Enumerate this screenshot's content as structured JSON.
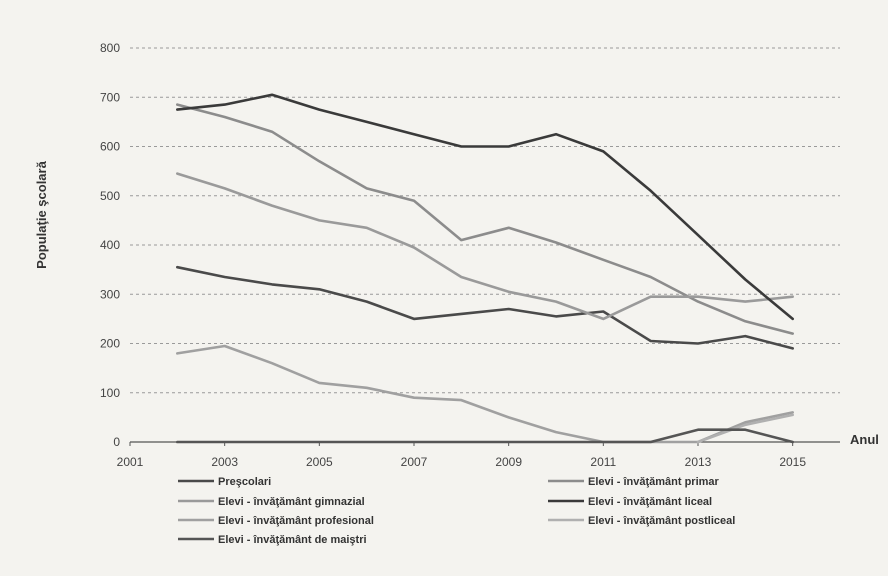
{
  "chart_data": {
    "type": "line",
    "ylabel": "Populaţie şcolară",
    "xlabel": "Anul",
    "xlim": [
      2001,
      2016
    ],
    "ylim": [
      0,
      800
    ],
    "x_ticks": [
      2001,
      2003,
      2005,
      2007,
      2009,
      2011,
      2013,
      2015
    ],
    "y_ticks": [
      0,
      100,
      200,
      300,
      400,
      500,
      600,
      700,
      800
    ],
    "grid": "horizontal dashed",
    "legend_position": "bottom",
    "x": [
      2002,
      2003,
      2004,
      2005,
      2006,
      2007,
      2008,
      2009,
      2010,
      2011,
      2012,
      2013,
      2014,
      2015
    ],
    "series": [
      {
        "name": "Preşcolari",
        "color": "#4a4a4a",
        "values": [
          355,
          335,
          320,
          310,
          285,
          250,
          260,
          270,
          255,
          265,
          205,
          200,
          215,
          190
        ]
      },
      {
        "name": "Elevi - învăţământ primar",
        "color": "#8c8c8c",
        "values": [
          685,
          660,
          630,
          570,
          515,
          490,
          410,
          435,
          405,
          370,
          335,
          285,
          245,
          220
        ]
      },
      {
        "name": "Elevi - învăţământ gimnazial",
        "color": "#9a9a9a",
        "values": [
          545,
          515,
          480,
          450,
          435,
          395,
          335,
          305,
          285,
          250,
          295,
          295,
          285,
          295
        ]
      },
      {
        "name": "Elevi - învăţământ liceal",
        "color": "#3a3a3a",
        "values": [
          675,
          685,
          705,
          675,
          650,
          625,
          600,
          600,
          625,
          590,
          510,
          420,
          330,
          250
        ]
      },
      {
        "name": "Elevi - învăţământ profesional",
        "color": "#a0a0a0",
        "values": [
          180,
          195,
          160,
          120,
          110,
          90,
          85,
          50,
          20,
          0,
          0,
          0,
          40,
          60
        ]
      },
      {
        "name": "Elevi - învăţământ postliceal",
        "color": "#b0b0b0",
        "values": [
          null,
          null,
          null,
          null,
          null,
          null,
          null,
          null,
          null,
          null,
          null,
          0,
          35,
          55
        ]
      },
      {
        "name": "Elevi - învăţământ de maiştri",
        "color": "#555555",
        "values": [
          0,
          0,
          0,
          0,
          0,
          0,
          0,
          0,
          0,
          0,
          0,
          25,
          25,
          0
        ]
      }
    ]
  }
}
